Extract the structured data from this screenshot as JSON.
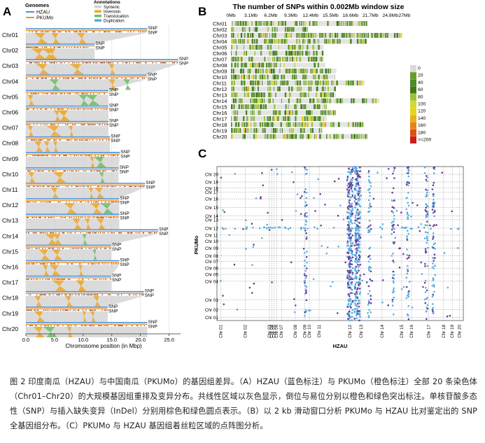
{
  "panel_a": {
    "letter": "A",
    "legend_genomes_title": "Genomes",
    "legend_genomes": [
      "HZAU",
      "PKUMo"
    ],
    "legend_annotations_title": "Annotations",
    "legend_annotations": [
      "Syntenic",
      "Inversion",
      "Translocation",
      "Duplication"
    ],
    "chromosomes": [
      "Chr01",
      "Chr02",
      "Chr03",
      "Chr04",
      "Chr05",
      "Chr06",
      "Chr07",
      "Chr08",
      "Chr09",
      "Chr10",
      "Chr11",
      "Chr12",
      "Chr13",
      "Chr14",
      "Chr15",
      "Chr16",
      "Chr17",
      "Chr18",
      "Chr19",
      "Chr20"
    ],
    "chromosome_lengths_mbp": [
      21.2,
      12.0,
      26.6,
      21.1,
      14.4,
      14.4,
      14.4,
      14.7,
      16.4,
      16.2,
      20.8,
      16.3,
      16.3,
      23.1,
      14.9,
      16.3,
      14.9,
      20.6,
      14.3,
      21.2
    ],
    "snp_label": "SNP",
    "x_ticks": [
      "0.0",
      "5.0",
      "10.0",
      "15.0",
      "20.0",
      "25.0"
    ],
    "x_tick_values": [
      0,
      5,
      10,
      15,
      20,
      25
    ],
    "x_max": 27,
    "xlabel": "Chromosome position (in Mbp)"
  },
  "panel_b": {
    "letter": "B",
    "title": "The number of SNPs within 0.002Mb window size",
    "ticks": [
      "0Mb",
      "3.1Mb",
      "6.2Mb",
      "9.3Mb",
      "12.4Mb",
      "15.5Mb",
      "18.6Mb",
      "21.7Mb",
      "24.8Mb",
      "27Mb"
    ],
    "tick_values": [
      0,
      3.1,
      6.2,
      9.3,
      12.4,
      15.5,
      18.6,
      21.7,
      24.8,
      27
    ],
    "chromosomes": [
      "Chr01",
      "Chr02",
      "Chr03",
      "Chr04",
      "Chr05",
      "Chr06",
      "Chr07",
      "Chr08",
      "Chr09",
      "Chr10",
      "Chr11",
      "Chr12",
      "Chr13",
      "Chr14",
      "Chr15",
      "Chr16",
      "Chr17",
      "Chr18",
      "Chr19",
      "Chr20"
    ],
    "legend": [
      "0",
      "20",
      "40",
      "60",
      "80",
      "100",
      "120",
      "140",
      "160",
      "180",
      ">=200"
    ],
    "legend_colors": [
      "#d9d9d9",
      "#6a9a2f",
      "#4f8c23",
      "#3f7a1c",
      "#9fc23a",
      "#d7d830",
      "#e6d51e",
      "#e8b21a",
      "#e58618",
      "#dc5316",
      "#cc1e1e"
    ]
  },
  "panel_c": {
    "letter": "C",
    "ylabel": "PKUMo",
    "xlabel": "HZAU",
    "x_chromosomes": [
      "Chr 01",
      "Chr 02",
      "Chr 03",
      "Chr 04",
      "Chr 05",
      "Chr 06",
      "Chr 07",
      "Chr 08",
      "Chr 09",
      "Chr 10",
      "Chr 11",
      "Chr 12",
      "Chr 13",
      "Chr 14",
      "Chr 15",
      "Chr 16",
      "Chr 17",
      "Chr 18",
      "Chr 19",
      "Chr 20"
    ],
    "y_chromosomes": [
      "Chr 01",
      "Chr 02",
      "Chr 03",
      "Chr 04",
      "Chr 05",
      "Chr 06",
      "Chr 07",
      "Chr 08",
      "Chr 09",
      "Chr 10",
      "Chr 11",
      "Chr 12",
      "Chr 13",
      "Chr 14",
      "Chr 15",
      "Chr 16",
      "Chr 17",
      "Chr 18",
      "Chr 19",
      "Chr 20"
    ],
    "colors": {
      "forward": "#5aaee0",
      "reverse": "#6a3d9a"
    }
  },
  "caption": "图 2 印度南瓜（HZAU）与中国南瓜（PKUMo）的基因组差异。（A）HZAU（蓝色标注）与 PKUMo（橙色标注）全部 20 条染色体（Chr01–Chr20）的大规模基因组重排及变异分布。共线性区域以灰色显示，倒位与易位分别以橙色和绿色突出标注。单核苷酸多态性（SNP）与插入缺失变异（InDel）分别用棕色和绿色圆点表示。（B）以 2 kb 滑动窗口分析 PKUMo 与 HZAU 比对鉴定出的 SNP 全基因组分布。（C）PKUMo 与 HZAU 基因组着丝粒区域的点阵图分析。",
  "colors": {
    "hzau": "#4a90d9",
    "pkumo": "#e8922a",
    "syntenic": "#cfcfcf",
    "inversion": "#f0a830",
    "translocation": "#72c06a",
    "duplication": "#4fb3d9",
    "snp": "#8b3a1a"
  }
}
